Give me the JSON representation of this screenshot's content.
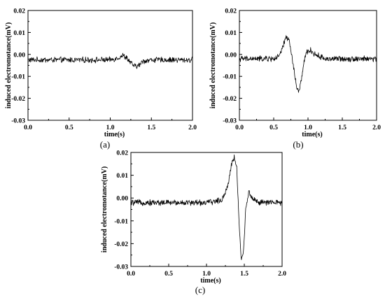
{
  "chart_data": [
    {
      "type": "line",
      "panel_label": "(a)",
      "xlabel": "time(s)",
      "ylabel": "induced electromotance(mV)",
      "xlim": [
        0.0,
        2.0
      ],
      "ylim": [
        -0.03,
        0.02
      ],
      "xticks": [
        "0.0",
        "0.5",
        "1.0",
        "1.5",
        "2.0"
      ],
      "yticks": [
        "0.02",
        "0.01",
        "0.00",
        "-0.01",
        "-0.02",
        "-0.03"
      ],
      "grid": false,
      "series": [
        {
          "x": [
            0.0,
            0.5,
            1.0,
            1.1,
            1.15,
            1.2,
            1.25,
            1.3,
            1.35,
            1.4,
            1.5,
            2.0
          ],
          "y": [
            -0.0025,
            -0.0025,
            -0.0025,
            -0.0015,
            -0.0005,
            -0.0015,
            -0.004,
            -0.0055,
            -0.005,
            -0.003,
            -0.0025,
            -0.0025
          ]
        }
      ]
    },
    {
      "type": "line",
      "panel_label": "(b)",
      "xlabel": "time(s)",
      "ylabel": "induced electromotance(mV)",
      "xlim": [
        0.0,
        2.0
      ],
      "ylim": [
        -0.03,
        0.02
      ],
      "xticks": [
        "0.0",
        "0.5",
        "1.0",
        "1.5",
        "2.0"
      ],
      "yticks": [
        "0.02",
        "0.01",
        "0.00",
        "-0.01",
        "-0.02",
        "-0.03"
      ],
      "grid": false,
      "series": [
        {
          "x": [
            0.0,
            0.5,
            0.58,
            0.63,
            0.68,
            0.72,
            0.76,
            0.8,
            0.84,
            0.87,
            0.9,
            0.94,
            0.98,
            1.03,
            1.1,
            1.25,
            2.0
          ],
          "y": [
            -0.002,
            -0.002,
            -0.001,
            0.003,
            0.008,
            0.007,
            0.0,
            -0.008,
            -0.016,
            -0.017,
            -0.012,
            -0.004,
            0.001,
            0.002,
            0.0,
            -0.002,
            -0.002
          ]
        }
      ]
    },
    {
      "type": "line",
      "panel_label": "(c)",
      "xlabel": "time(s)",
      "ylabel": "induced electromotance(mV)",
      "xlim": [
        0.0,
        2.0
      ],
      "ylim": [
        -0.03,
        0.02
      ],
      "xticks": [
        "0.0",
        "0.5",
        "1.0",
        "1.5",
        "2.0"
      ],
      "yticks": [
        "0.02",
        "0.01",
        "0.00",
        "-0.01",
        "-0.02",
        "-0.03"
      ],
      "grid": false,
      "series": [
        {
          "x": [
            0.0,
            0.5,
            1.0,
            1.2,
            1.28,
            1.33,
            1.37,
            1.4,
            1.43,
            1.46,
            1.49,
            1.52,
            1.56,
            1.6,
            1.7,
            2.0
          ],
          "y": [
            -0.002,
            -0.002,
            -0.002,
            -0.001,
            0.005,
            0.015,
            0.018,
            0.013,
            -0.01,
            -0.027,
            -0.024,
            -0.004,
            0.003,
            0.0,
            -0.002,
            -0.002
          ]
        }
      ]
    }
  ]
}
